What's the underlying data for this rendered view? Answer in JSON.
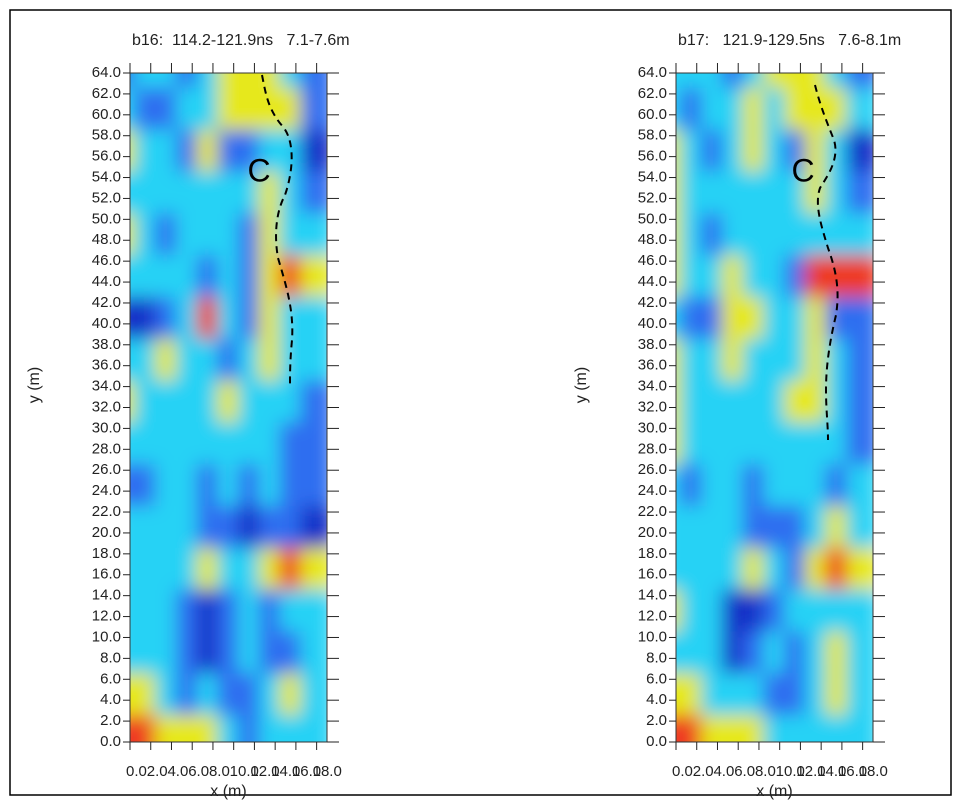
{
  "chart_data": [
    {
      "type": "heatmap",
      "title": "b16:  114.2-121.9ns   7.1-7.6m",
      "xlabel": "x (m)",
      "ylabel": "y (m)",
      "xlim": [
        0,
        19
      ],
      "ylim": [
        0,
        64
      ],
      "xticks": [
        {
          "value": 0,
          "label": "0.0"
        },
        {
          "value": 2,
          "label": "2.0"
        },
        {
          "value": 4,
          "label": "4.0"
        },
        {
          "value": 6,
          "label": "6.0"
        },
        {
          "value": 8,
          "label": "8.0"
        },
        {
          "value": 10,
          "label": "10.0"
        },
        {
          "value": 12,
          "label": "12.0"
        },
        {
          "value": 14,
          "label": "14.0"
        },
        {
          "value": 16,
          "label": "16.0"
        },
        {
          "value": 18,
          "label": "18.0"
        }
      ],
      "yticks": [
        {
          "value": 0,
          "label": "0.0"
        },
        {
          "value": 2,
          "label": "2.0"
        },
        {
          "value": 4,
          "label": "4.0"
        },
        {
          "value": 6,
          "label": "6.0"
        },
        {
          "value": 8,
          "label": "8.0"
        },
        {
          "value": 10,
          "label": "10.0"
        },
        {
          "value": 12,
          "label": "12.0"
        },
        {
          "value": 14,
          "label": "14.0"
        },
        {
          "value": 16,
          "label": "16.0"
        },
        {
          "value": 18,
          "label": "18.0"
        },
        {
          "value": 20,
          "label": "20.0"
        },
        {
          "value": 22,
          "label": "22.0"
        },
        {
          "value": 24,
          "label": "24.0"
        },
        {
          "value": 26,
          "label": "26.0"
        },
        {
          "value": 28,
          "label": "28.0"
        },
        {
          "value": 30,
          "label": "30.0"
        },
        {
          "value": 32,
          "label": "32.0"
        },
        {
          "value": 34,
          "label": "34.0"
        },
        {
          "value": 36,
          "label": "36.0"
        },
        {
          "value": 38,
          "label": "38.0"
        },
        {
          "value": 40,
          "label": "40.0"
        },
        {
          "value": 42,
          "label": "42.0"
        },
        {
          "value": 44,
          "label": "44.0"
        },
        {
          "value": 46,
          "label": "46.0"
        },
        {
          "value": 48,
          "label": "48.0"
        },
        {
          "value": 50,
          "label": "50.0"
        },
        {
          "value": 52,
          "label": "52.0"
        },
        {
          "value": 54,
          "label": "54.0"
        },
        {
          "value": 56,
          "label": "56.0"
        },
        {
          "value": 58,
          "label": "58.0"
        },
        {
          "value": 60,
          "label": "60.0"
        },
        {
          "value": 62,
          "label": "62.0"
        },
        {
          "value": 64,
          "label": "64.0"
        }
      ],
      "x": [
        0,
        2,
        4,
        6,
        8,
        10,
        12,
        14,
        16,
        18
      ],
      "y": [
        64,
        60,
        56,
        52,
        48,
        44,
        40,
        36,
        32,
        28,
        24,
        20,
        16,
        12,
        8,
        4,
        0
      ],
      "colors": [
        "#1430c8",
        "#2f6ef0",
        "#28d2f5",
        "#e6e81c",
        "#ee3a20"
      ],
      "z": [
        [
          1,
          2,
          2,
          1,
          2,
          3,
          3,
          3,
          2,
          1
        ],
        [
          2,
          1,
          1,
          2,
          2,
          3,
          3,
          3,
          3,
          1
        ],
        [
          3,
          2,
          2,
          1,
          3,
          1,
          1,
          2,
          2,
          0
        ],
        [
          2,
          2,
          2,
          2,
          2,
          2,
          2,
          3,
          2,
          1
        ],
        [
          3,
          2,
          1,
          2,
          2,
          2,
          1,
          3,
          2,
          2
        ],
        [
          2,
          2,
          2,
          2,
          1,
          2,
          1,
          3,
          4,
          3
        ],
        [
          0,
          0,
          1,
          2,
          4,
          2,
          1,
          3,
          2,
          2
        ],
        [
          2,
          2,
          3,
          2,
          2,
          1,
          2,
          3,
          2,
          2
        ],
        [
          3,
          2,
          2,
          2,
          2,
          3,
          2,
          2,
          2,
          1
        ],
        [
          2,
          2,
          2,
          2,
          2,
          2,
          2,
          2,
          1,
          1
        ],
        [
          1,
          1,
          2,
          2,
          1,
          2,
          1,
          2,
          1,
          1
        ],
        [
          2,
          2,
          2,
          2,
          1,
          1,
          0,
          1,
          1,
          0
        ],
        [
          2,
          2,
          2,
          2,
          3,
          2,
          2,
          3,
          4,
          3
        ],
        [
          2,
          2,
          2,
          1,
          0,
          1,
          2,
          1,
          2,
          2
        ],
        [
          2,
          2,
          2,
          1,
          0,
          1,
          2,
          1,
          1,
          2
        ],
        [
          3,
          3,
          2,
          1,
          2,
          1,
          1,
          2,
          3,
          2
        ],
        [
          4,
          4,
          3,
          3,
          3,
          2,
          1,
          2,
          2,
          2
        ]
      ],
      "annotation": "C"
    },
    {
      "type": "heatmap",
      "title": "b17:   121.9-129.5ns   7.6-8.1m",
      "xlabel": "x (m)",
      "ylabel": "y (m)",
      "xlim": [
        0,
        19
      ],
      "ylim": [
        0,
        64
      ],
      "xticks": [
        {
          "value": 0,
          "label": "0.0"
        },
        {
          "value": 2,
          "label": "2.0"
        },
        {
          "value": 4,
          "label": "4.0"
        },
        {
          "value": 6,
          "label": "6.0"
        },
        {
          "value": 8,
          "label": "8.0"
        },
        {
          "value": 10,
          "label": "10.0"
        },
        {
          "value": 12,
          "label": "12.0"
        },
        {
          "value": 14,
          "label": "14.0"
        },
        {
          "value": 16,
          "label": "16.0"
        },
        {
          "value": 18,
          "label": "18.0"
        }
      ],
      "yticks": [
        {
          "value": 0,
          "label": "0.0"
        },
        {
          "value": 2,
          "label": "2.0"
        },
        {
          "value": 4,
          "label": "4.0"
        },
        {
          "value": 6,
          "label": "6.0"
        },
        {
          "value": 8,
          "label": "8.0"
        },
        {
          "value": 10,
          "label": "10.0"
        },
        {
          "value": 12,
          "label": "12.0"
        },
        {
          "value": 14,
          "label": "14.0"
        },
        {
          "value": 16,
          "label": "16.0"
        },
        {
          "value": 18,
          "label": "18.0"
        },
        {
          "value": 20,
          "label": "20.0"
        },
        {
          "value": 22,
          "label": "22.0"
        },
        {
          "value": 24,
          "label": "24.0"
        },
        {
          "value": 26,
          "label": "26.0"
        },
        {
          "value": 28,
          "label": "28.0"
        },
        {
          "value": 30,
          "label": "30.0"
        },
        {
          "value": 32,
          "label": "32.0"
        },
        {
          "value": 34,
          "label": "34.0"
        },
        {
          "value": 36,
          "label": "36.0"
        },
        {
          "value": 38,
          "label": "38.0"
        },
        {
          "value": 40,
          "label": "40.0"
        },
        {
          "value": 42,
          "label": "42.0"
        },
        {
          "value": 44,
          "label": "44.0"
        },
        {
          "value": 46,
          "label": "46.0"
        },
        {
          "value": 48,
          "label": "48.0"
        },
        {
          "value": 50,
          "label": "50.0"
        },
        {
          "value": 52,
          "label": "52.0"
        },
        {
          "value": 54,
          "label": "54.0"
        },
        {
          "value": 56,
          "label": "56.0"
        },
        {
          "value": 58,
          "label": "58.0"
        },
        {
          "value": 60,
          "label": "60.0"
        },
        {
          "value": 62,
          "label": "62.0"
        },
        {
          "value": 64,
          "label": "64.0"
        }
      ],
      "x": [
        0,
        2,
        4,
        6,
        8,
        10,
        12,
        14,
        16,
        18
      ],
      "y": [
        64,
        60,
        56,
        52,
        48,
        44,
        40,
        36,
        32,
        28,
        24,
        20,
        16,
        12,
        8,
        4,
        0
      ],
      "colors": [
        "#1430c8",
        "#2f6ef0",
        "#28d2f5",
        "#e6e81c",
        "#ee3a20"
      ],
      "z": [
        [
          2,
          2,
          2,
          1,
          2,
          3,
          3,
          3,
          2,
          1
        ],
        [
          2,
          1,
          2,
          2,
          3,
          2,
          3,
          3,
          3,
          2
        ],
        [
          3,
          2,
          1,
          2,
          3,
          2,
          1,
          3,
          2,
          0
        ],
        [
          3,
          2,
          2,
          2,
          2,
          2,
          2,
          3,
          2,
          1
        ],
        [
          3,
          2,
          1,
          2,
          2,
          2,
          2,
          2,
          2,
          2
        ],
        [
          3,
          2,
          2,
          3,
          2,
          2,
          1,
          4,
          4,
          4
        ],
        [
          2,
          1,
          1,
          3,
          3,
          2,
          2,
          3,
          1,
          1
        ],
        [
          3,
          2,
          2,
          3,
          2,
          2,
          2,
          3,
          2,
          1
        ],
        [
          3,
          2,
          2,
          2,
          2,
          2,
          3,
          3,
          2,
          1
        ],
        [
          3,
          2,
          2,
          2,
          2,
          2,
          2,
          2,
          2,
          1
        ],
        [
          2,
          1,
          2,
          2,
          1,
          2,
          2,
          2,
          1,
          2
        ],
        [
          2,
          2,
          2,
          2,
          1,
          1,
          1,
          2,
          3,
          2
        ],
        [
          2,
          2,
          2,
          2,
          3,
          2,
          1,
          3,
          4,
          3
        ],
        [
          3,
          2,
          2,
          0,
          0,
          1,
          2,
          2,
          2,
          2
        ],
        [
          2,
          2,
          2,
          0,
          1,
          2,
          1,
          2,
          3,
          2
        ],
        [
          3,
          3,
          2,
          2,
          2,
          1,
          1,
          2,
          3,
          2
        ],
        [
          4,
          4,
          3,
          3,
          3,
          2,
          2,
          2,
          2,
          2
        ]
      ],
      "annotation": "C"
    }
  ]
}
